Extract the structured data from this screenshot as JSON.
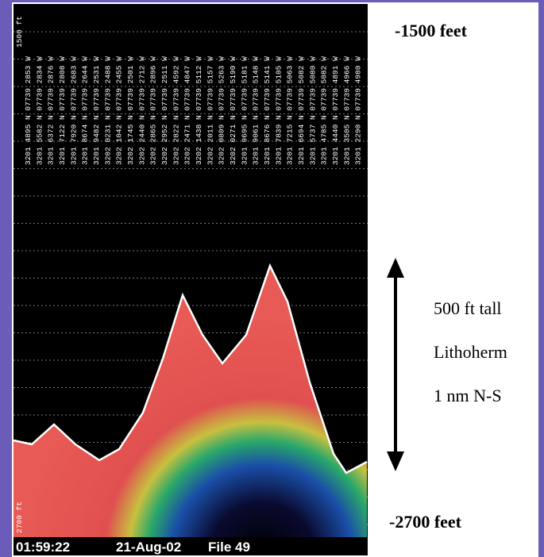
{
  "echogram": {
    "top_scale": "1500 ft",
    "bottom_scale": "2700 ft",
    "columns": [
      "3201 4895 N 07739 2853 W",
      "3201 5582 N 07739 2834 W",
      "3201 6372 N 07739 2876 W",
      "3201 7122 N 07739 2808 W",
      "3201 7920 N 07739 2683 W",
      "3201 8674 N 07739 2644 W",
      "3201 9482 N 07739 2531 W",
      "3202 0231 N 07739 2488 W",
      "3202 1042 N 07739 2455 W",
      "3202 1745 N 07739 2501 W",
      "3202 2440 N 07739 2712 W",
      "3202 2865 N 07739 2896 W",
      "3202 2952 N 07739 2511 W",
      "3202 2822 N 07739 4592 W",
      "3202 2471 N 07739 4847 W",
      "3202 1438 N 07739 5112 W",
      "3202 2011 N 07739 5157 W",
      "3202 0809 N 07739 5263 W",
      "3202 0271 N 07739 5190 W",
      "3201 9695 N 07739 5181 W",
      "3201 9061 N 07739 5148 W",
      "3201 8676 N 07739 5141 W",
      "3201 7839 N 07739 5105 W",
      "3201 7215 N 07739 5063 W",
      "3201 6694 N 07739 5082 W",
      "3201 5737 N 07739 5080 W",
      "3201 4785 N 07739 5082 W",
      "3201 4440 N 07739 4891 W",
      "3201 3505 N 07739 4966 W",
      "3201 2290 N 07739 4980 W"
    ],
    "footer": {
      "time": "01:59:22",
      "date": "21-Aug-02",
      "file": "File 49"
    }
  },
  "annotations": {
    "top_depth": "-1500 feet",
    "bottom_depth": "-2700 feet",
    "height": "500 ft tall",
    "name": "Lithoherm",
    "extent": "1 nm N-S"
  }
}
